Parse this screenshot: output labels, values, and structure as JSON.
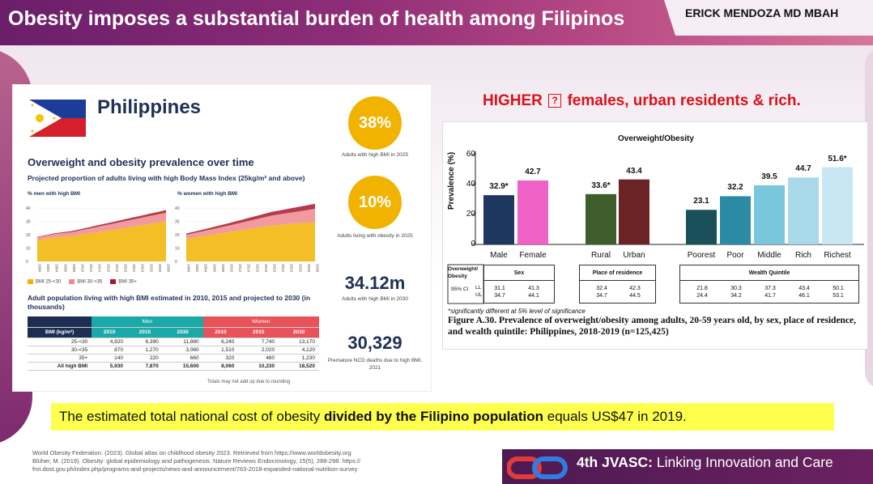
{
  "header": {
    "title": "Obesity imposes a substantial burden of health among Filipinos",
    "author": "ERICK MENDOZA MD MBAH"
  },
  "infographic": {
    "country": "Philippines",
    "section_title": "Overweight and obesity prevalence over time",
    "subtitle": "Projected proportion of adults living with high Body Mass Index (25kg/m² and above)",
    "men_label": "% men with high BMI",
    "women_label": "% women with high BMI",
    "y_ticks": [
      "40",
      "30",
      "20",
      "10",
      "0"
    ],
    "years": [
      "2000",
      "2002",
      "2004",
      "2006",
      "2008",
      "2010",
      "2012",
      "2014",
      "2016",
      "2018",
      "2020",
      "2022",
      "2024",
      "2026",
      "2028",
      "2030"
    ],
    "legend": [
      {
        "label": "BMI 25-<30",
        "color": "#f2b300"
      },
      {
        "label": "BMI 30-<35",
        "color": "#f08a8e"
      },
      {
        "label": "BMI 35+",
        "color": "#a8192f"
      }
    ],
    "men_series": {
      "bmi_25_30": [
        16,
        17,
        18,
        18.5,
        19,
        20,
        21,
        22,
        23,
        24,
        25,
        26,
        27,
        28,
        29,
        30
      ],
      "bmi_30_35": [
        2,
        2.2,
        2.5,
        2.8,
        3,
        3.3,
        3.6,
        4,
        4.3,
        4.6,
        5,
        5.3,
        5.6,
        6,
        6.3,
        6.6
      ],
      "bmi_35": [
        0.5,
        0.5,
        0.6,
        0.7,
        0.8,
        0.9,
        1,
        1.1,
        1.2,
        1.3,
        1.4,
        1.5,
        1.6,
        1.7,
        1.8,
        2
      ]
    },
    "women_series": {
      "bmi_25_30": [
        17,
        18,
        19,
        20,
        21,
        22,
        23,
        24,
        25,
        26,
        27,
        27.5,
        28,
        28.5,
        29,
        29.5
      ],
      "bmi_30_35": [
        3,
        3.4,
        3.8,
        4.2,
        4.6,
        5,
        5.5,
        6,
        6.5,
        7,
        7.5,
        8,
        8.5,
        9,
        9.5,
        10
      ],
      "bmi_35": [
        1,
        1.1,
        1.2,
        1.4,
        1.6,
        1.8,
        2,
        2.2,
        2.4,
        2.6,
        2.8,
        3,
        3.2,
        3.4,
        3.6,
        3.8
      ]
    },
    "adult_title": "Adult population living with high BMI estimated in 2010, 2015 and projected to 2030 (in thousands)",
    "table": {
      "men": "Men",
      "women": "Women",
      "col0": "BMI (kg/m²)",
      "years": [
        "2010",
        "2015",
        "2030",
        "2010",
        "2015",
        "2030"
      ],
      "rows": [
        [
          "25-<30",
          "4,920",
          "6,390",
          "11,880",
          "6,240",
          "7,740",
          "13,170"
        ],
        [
          "30-<35",
          "870",
          "1,270",
          "3,060",
          "1,510",
          "2,020",
          "4,120"
        ],
        [
          "35+",
          "140",
          "220",
          "660",
          "320",
          "480",
          "1,230"
        ],
        [
          "All high BMI",
          "5,930",
          "7,870",
          "15,600",
          "8,060",
          "10,230",
          "18,520"
        ]
      ]
    },
    "footnote": "Totals may not add up due to rounding",
    "stats": [
      {
        "value": "38%",
        "caption": "Adults with high BMI in 2025"
      },
      {
        "value": "10%",
        "caption": "Adults living with obesity in 2025"
      },
      {
        "value": "34.12m",
        "caption": "Adults with high BMI in 2030"
      },
      {
        "value": "30,329",
        "caption": "Premature NCD deaths due to high BMI, 2021"
      }
    ]
  },
  "higher": {
    "prefix": "HIGHER",
    "symbol": "?",
    "text": "females, urban residents &  rich."
  },
  "chart_data": {
    "type": "bar",
    "title": "Overweight/Obesity",
    "ylabel": "Prevalence (%)",
    "ylim": [
      0,
      60
    ],
    "y_ticks": [
      "60",
      "40",
      "20",
      "0"
    ],
    "categories": [
      "Male",
      "Female",
      "Rural",
      "Urban",
      "Poorest",
      "Poor",
      "Middle",
      "Rich",
      "Richest"
    ],
    "values": [
      32.9,
      42.7,
      33.6,
      43.4,
      23.1,
      32.2,
      39.5,
      44.7,
      51.6
    ],
    "value_labels": [
      "32.9*",
      "42.7",
      "33.6*",
      "43.4",
      "23.1",
      "32.2",
      "39.5",
      "44.7",
      "51.6*"
    ],
    "colors": [
      "#1d3760",
      "#f062c6",
      "#3d5e2b",
      "#6b2325",
      "#1b4f5a",
      "#2b8aa4",
      "#79c6dd",
      "#a8d9ea",
      "#c9e7f2"
    ],
    "groups": [
      {
        "label": "Sex",
        "cols": [
          0,
          1
        ]
      },
      {
        "label": "Place of residence",
        "cols": [
          2,
          3
        ]
      },
      {
        "label": "Wealth Quintile",
        "cols": [
          4,
          5,
          6,
          7,
          8
        ]
      }
    ],
    "row_header": "Overweight/ Obesity",
    "ci_label": "95% CI",
    "ll": "LL",
    "ul": "UL",
    "ll_values": [
      "31.1",
      "41.3",
      "32.4",
      "42.3",
      "21.8",
      "30.3",
      "37.3",
      "43.4",
      "50.1"
    ],
    "ul_values": [
      "34.7",
      "44.1",
      "34.7",
      "44.5",
      "24.4",
      "34.2",
      "41.7",
      "46.1",
      "53.1"
    ],
    "significance_note": "*significantly different at 5% level of significance"
  },
  "caption": "Figure A.30. Prevalence of overweight/obesity among adults, 20-59 years old, by sex, place of residence, and wealth quintile: Philippines, 2018-2019 (n=125,425)",
  "cost": {
    "part1": "The estimated total national cost of obesity ",
    "bold": "divided by the Filipino population",
    "part2": " equals US$47 in 2019."
  },
  "references": [
    "World Obesity Federation. (2023). Global atlas on childhood obesity 2023. Retrieved from https://www.worldobesity.org",
    "Blüher, M. (2019). Obesity: global epidemiology and pathogenesis. Nature Reviews Endocrinology, 15(5), 288-298. https://",
    "fnri.dost.gov.ph/index.php/programs-and-projects/news-and-announcement/763-2018-expanded-national-nutrition-survey"
  ],
  "footer": {
    "bold": "4th JVASC:",
    "text": " Linking Innovation and Care"
  }
}
